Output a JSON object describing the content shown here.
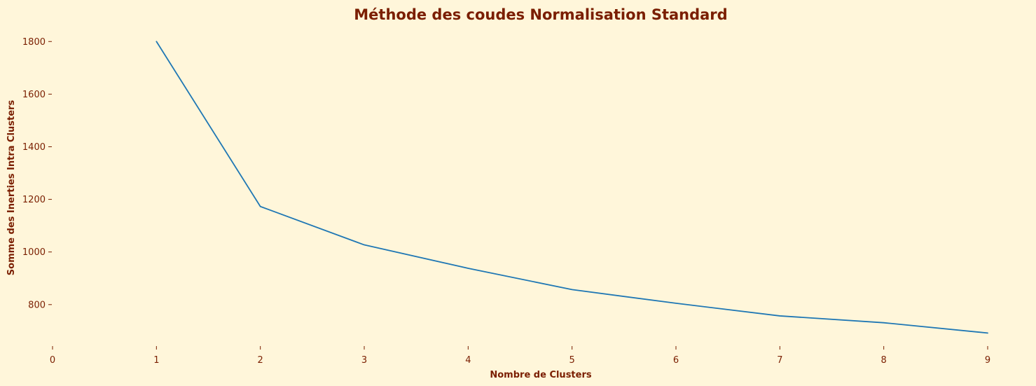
{
  "chart_data": {
    "type": "line",
    "title": "Méthode des coudes Normalisation Standard",
    "xlabel": "Nombre de Clusters",
    "ylabel": "Somme des Inerties Intra Clusters",
    "x": [
      1,
      2,
      3,
      4,
      5,
      6,
      7,
      8,
      9
    ],
    "series": [
      {
        "values": [
          1800,
          1173,
          1027,
          938,
          857,
          805,
          757,
          731,
          692
        ],
        "color": "#1f77b4"
      }
    ],
    "xticks": [
      0,
      1,
      2,
      3,
      4,
      5,
      6,
      7,
      8,
      9
    ],
    "yticks": [
      800,
      1000,
      1200,
      1400,
      1600,
      1800
    ],
    "xlim": [
      0,
      9
    ],
    "ylim": [
      645,
      1830
    ],
    "grid": false,
    "colors": {
      "background": "#fff6da",
      "text": "#7a1e00"
    }
  }
}
